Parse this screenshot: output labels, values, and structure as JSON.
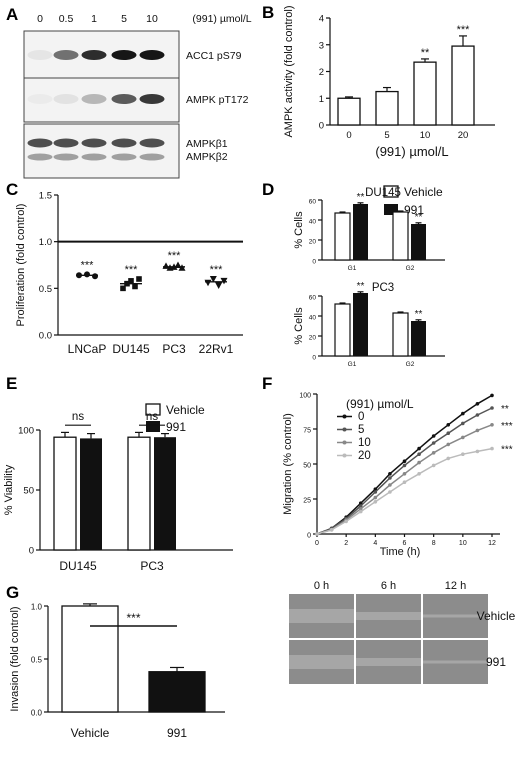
{
  "panel_letters": [
    "A",
    "B",
    "C",
    "D",
    "E",
    "F",
    "G"
  ],
  "chart_data": [
    {
      "panel": "A",
      "type": "table",
      "lane_header_label": "(991) µmol/L",
      "lanes": [
        "0",
        "0.5",
        "1",
        "5",
        "10"
      ],
      "bands": [
        {
          "name": "ACC1 pS79",
          "intensity": [
            0.05,
            0.55,
            0.85,
            0.95,
            0.95
          ]
        },
        {
          "name": "AMPK pT172",
          "intensity": [
            0.02,
            0.06,
            0.25,
            0.65,
            0.8
          ]
        },
        {
          "name": "AMPKβ1",
          "intensity": [
            0.7,
            0.7,
            0.7,
            0.7,
            0.7
          ]
        },
        {
          "name": "AMPKβ2",
          "intensity": [
            0.35,
            0.35,
            0.35,
            0.35,
            0.35
          ]
        }
      ]
    },
    {
      "panel": "B",
      "type": "bar",
      "categories": [
        "0",
        "5",
        "10",
        "20"
      ],
      "values": [
        1.0,
        1.25,
        2.35,
        2.95
      ],
      "errors": [
        0.05,
        0.15,
        0.12,
        0.38
      ],
      "significance": [
        "",
        "",
        "**",
        "***"
      ],
      "xlabel": "(991) µmol/L",
      "ylabel": "AMPK activity (fold control)",
      "ylim": [
        0,
        4
      ],
      "yticks": [
        "0",
        "1",
        "2",
        "3",
        "4"
      ]
    },
    {
      "panel": "C",
      "type": "scatter",
      "categories": [
        "LNCaP",
        "DU145",
        "PC3",
        "22Rv1"
      ],
      "points": [
        [
          0.64,
          0.65,
          0.63
        ],
        [
          0.5,
          0.55,
          0.58,
          0.52,
          0.6
        ],
        [
          0.74,
          0.72,
          0.73,
          0.75,
          0.72
        ],
        [
          0.56,
          0.6,
          0.53,
          0.58
        ]
      ],
      "markers": [
        "circle",
        "square",
        "triangle-up",
        "triangle-down"
      ],
      "means": [
        0.64,
        0.55,
        0.73,
        0.57
      ],
      "significance": [
        "***",
        "***",
        "***",
        "***"
      ],
      "reference_line": 1.0,
      "ylabel": "Proliferation (fold control)",
      "ylim": [
        0,
        1.5
      ],
      "yticks": [
        "0.0",
        "0.5",
        "1.0",
        "1.5"
      ]
    },
    {
      "panel": "D",
      "type": "bar",
      "legend": [
        "Vehicle",
        "991"
      ],
      "subplots": [
        {
          "title": "DU145",
          "categories": [
            "G1",
            "G2"
          ],
          "ylabel": "% Cells",
          "ylim": [
            0,
            60
          ],
          "yticks": [
            "0",
            "20",
            "40",
            "60"
          ],
          "series": [
            {
              "name": "Vehicle",
              "values": [
                47,
                48
              ]
            },
            {
              "name": "991",
              "values": [
                56,
                36
              ]
            }
          ],
          "significance": [
            "**",
            "**"
          ]
        },
        {
          "title": "PC3",
          "categories": [
            "G1",
            "G2"
          ],
          "ylabel": "% Cells",
          "ylim": [
            0,
            60
          ],
          "yticks": [
            "0",
            "20",
            "40",
            "60"
          ],
          "series": [
            {
              "name": "Vehicle",
              "values": [
                52,
                43
              ]
            },
            {
              "name": "991",
              "values": [
                63,
                35
              ]
            }
          ],
          "significance": [
            "**",
            "**"
          ]
        }
      ]
    },
    {
      "panel": "E",
      "type": "bar",
      "categories": [
        "DU145",
        "PC3"
      ],
      "series": [
        {
          "name": "Vehicle",
          "values": [
            94,
            94
          ]
        },
        {
          "name": "991",
          "values": [
            93,
            94
          ]
        }
      ],
      "errors": [
        [
          4,
          4
        ],
        [
          4,
          3
        ]
      ],
      "significance": [
        "ns",
        "ns"
      ],
      "ylabel": "% Viability",
      "ylim": [
        0,
        100
      ],
      "yticks": [
        "0",
        "50",
        "100"
      ]
    },
    {
      "panel": "F",
      "type": "line",
      "legend_title": "(991) µmol/L",
      "x": [
        0,
        1,
        2,
        3,
        4,
        5,
        6,
        7,
        8,
        9,
        10,
        11,
        12
      ],
      "series": [
        {
          "name": "0",
          "color": "#111111",
          "values": [
            0,
            4,
            12,
            22,
            32,
            43,
            52,
            61,
            70,
            78,
            86,
            93,
            99
          ]
        },
        {
          "name": "5",
          "color": "#555555",
          "values": [
            0,
            4,
            11,
            20,
            30,
            40,
            49,
            57,
            65,
            72,
            79,
            85,
            90
          ]
        },
        {
          "name": "10",
          "color": "#888888",
          "values": [
            0,
            3,
            10,
            18,
            26,
            35,
            43,
            51,
            58,
            64,
            69,
            74,
            78
          ]
        },
        {
          "name": "20",
          "color": "#bbbbbb",
          "values": [
            0,
            3,
            9,
            16,
            23,
            30,
            37,
            43,
            49,
            54,
            57,
            59,
            61
          ]
        }
      ],
      "significance": [
        "",
        "**",
        "***",
        "***"
      ],
      "xlabel": "Time (h)",
      "ylabel": "Migration (% control)",
      "xlim": [
        0,
        12
      ],
      "ylim": [
        0,
        100
      ],
      "xticks": [
        "0",
        "2",
        "4",
        "6",
        "8",
        "10",
        "12"
      ],
      "yticks": [
        "0",
        "25",
        "50",
        "75",
        "100"
      ],
      "micrograph": {
        "columns": [
          "0 h",
          "6 h",
          "12 h"
        ],
        "rows": [
          "Vehicle",
          "991"
        ]
      }
    },
    {
      "panel": "G",
      "type": "bar",
      "categories": [
        "Vehicle",
        "991"
      ],
      "values": [
        1.0,
        0.38
      ],
      "errors": [
        0.02,
        0.04
      ],
      "significance": "***",
      "ylabel": "Invasion (fold control)",
      "ylim": [
        0,
        1.0
      ],
      "yticks": [
        "0.0",
        "0.5",
        "1.0"
      ]
    }
  ]
}
